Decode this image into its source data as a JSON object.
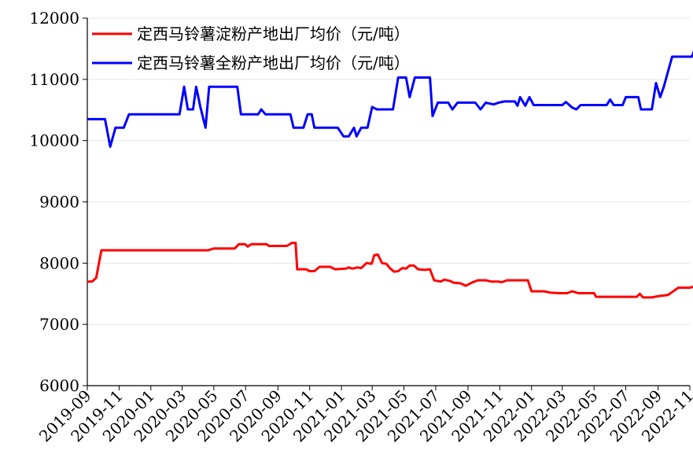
{
  "chart_data": {
    "type": "line",
    "title": "",
    "xlabel": "",
    "ylabel": "",
    "ylim": [
      6000,
      12000
    ],
    "yticks": [
      6000,
      7000,
      8000,
      9000,
      10000,
      11000,
      12000
    ],
    "xlim": [
      "2019-09",
      "2022-11"
    ],
    "xticks": [
      "2019-09",
      "2019-11",
      "2020-01",
      "2020-03",
      "2020-05",
      "2020-07",
      "2020-09",
      "2020-11",
      "2021-01",
      "2021-03",
      "2021-05",
      "2021-07",
      "2021-09",
      "2021-11",
      "2022-01",
      "2022-03",
      "2022-05",
      "2022-07",
      "2022-09",
      "2022-11"
    ],
    "grid": "horizontal",
    "legend": "top-left",
    "series": [
      {
        "name": "定西马铃薯淀粉产地出厂均价（元/吨）",
        "color": "#ff0000",
        "points": [
          [
            "2019-09-01",
            7700
          ],
          [
            "2019-09-10",
            7700
          ],
          [
            "2019-09-18",
            7760
          ],
          [
            "2019-09-28",
            8210
          ],
          [
            "2020-04-20",
            8210
          ],
          [
            "2020-05-01",
            8240
          ],
          [
            "2020-06-10",
            8240
          ],
          [
            "2020-06-18",
            8310
          ],
          [
            "2020-06-30",
            8310
          ],
          [
            "2020-07-05",
            8270
          ],
          [
            "2020-07-12",
            8310
          ],
          [
            "2020-08-10",
            8310
          ],
          [
            "2020-08-15",
            8280
          ],
          [
            "2020-09-18",
            8280
          ],
          [
            "2020-09-28",
            8330
          ],
          [
            "2020-10-05",
            8330
          ],
          [
            "2020-10-08",
            7900
          ],
          [
            "2020-10-25",
            7900
          ],
          [
            "2020-11-01",
            7870
          ],
          [
            "2020-11-10",
            7870
          ],
          [
            "2020-11-20",
            7940
          ],
          [
            "2020-12-10",
            7940
          ],
          [
            "2020-12-20",
            7900
          ],
          [
            "2021-01-10",
            7910
          ],
          [
            "2021-01-15",
            7930
          ],
          [
            "2021-01-22",
            7910
          ],
          [
            "2021-02-01",
            7930
          ],
          [
            "2021-02-08",
            7920
          ],
          [
            "2021-02-18",
            8000
          ],
          [
            "2021-02-28",
            7990
          ],
          [
            "2021-03-05",
            8130
          ],
          [
            "2021-03-12",
            8140
          ],
          [
            "2021-03-20",
            8000
          ],
          [
            "2021-03-28",
            7990
          ],
          [
            "2021-04-05",
            7910
          ],
          [
            "2021-04-12",
            7860
          ],
          [
            "2021-04-20",
            7870
          ],
          [
            "2021-04-28",
            7920
          ],
          [
            "2021-05-05",
            7910
          ],
          [
            "2021-05-12",
            7960
          ],
          [
            "2021-05-20",
            7960
          ],
          [
            "2021-05-28",
            7900
          ],
          [
            "2021-06-10",
            7890
          ],
          [
            "2021-06-20",
            7900
          ],
          [
            "2021-06-28",
            7720
          ],
          [
            "2021-07-10",
            7700
          ],
          [
            "2021-07-18",
            7730
          ],
          [
            "2021-07-28",
            7710
          ],
          [
            "2021-08-05",
            7680
          ],
          [
            "2021-08-18",
            7670
          ],
          [
            "2021-08-28",
            7630
          ],
          [
            "2021-09-08",
            7680
          ],
          [
            "2021-09-20",
            7720
          ],
          [
            "2021-10-05",
            7720
          ],
          [
            "2021-10-15",
            7700
          ],
          [
            "2021-10-28",
            7700
          ],
          [
            "2021-11-05",
            7690
          ],
          [
            "2021-11-15",
            7720
          ],
          [
            "2021-12-25",
            7720
          ],
          [
            "2022-01-01",
            7540
          ],
          [
            "2022-01-25",
            7540
          ],
          [
            "2022-02-05",
            7520
          ],
          [
            "2022-02-25",
            7510
          ],
          [
            "2022-03-10",
            7510
          ],
          [
            "2022-03-20",
            7540
          ],
          [
            "2022-04-01",
            7510
          ],
          [
            "2022-05-01",
            7510
          ],
          [
            "2022-05-05",
            7450
          ],
          [
            "2022-07-10",
            7450
          ],
          [
            "2022-07-22",
            7450
          ],
          [
            "2022-07-28",
            7500
          ],
          [
            "2022-08-03",
            7440
          ],
          [
            "2022-08-20",
            7440
          ],
          [
            "2022-09-01",
            7460
          ],
          [
            "2022-09-20",
            7480
          ],
          [
            "2022-10-10",
            7600
          ],
          [
            "2022-11-01",
            7600
          ],
          [
            "2022-11-10",
            7620
          ],
          [
            "2022-11-15",
            7620
          ]
        ]
      },
      {
        "name": "定西马铃薯全粉产地出厂均价（元/吨）",
        "color": "#0000ff",
        "points": [
          [
            "2019-09-01",
            10350
          ],
          [
            "2019-10-05",
            10350
          ],
          [
            "2019-10-15",
            9900
          ],
          [
            "2019-10-25",
            10210
          ],
          [
            "2019-11-10",
            10210
          ],
          [
            "2019-11-20",
            10430
          ],
          [
            "2020-02-25",
            10430
          ],
          [
            "2020-03-05",
            10880
          ],
          [
            "2020-03-12",
            10510
          ],
          [
            "2020-03-22",
            10510
          ],
          [
            "2020-03-28",
            10880
          ],
          [
            "2020-04-05",
            10550
          ],
          [
            "2020-04-15",
            10210
          ],
          [
            "2020-04-22",
            10880
          ],
          [
            "2020-06-15",
            10880
          ],
          [
            "2020-06-22",
            10430
          ],
          [
            "2020-07-25",
            10430
          ],
          [
            "2020-07-31",
            10510
          ],
          [
            "2020-08-08",
            10430
          ],
          [
            "2020-09-25",
            10430
          ],
          [
            "2020-10-01",
            10210
          ],
          [
            "2020-10-20",
            10210
          ],
          [
            "2020-10-28",
            10430
          ],
          [
            "2020-11-05",
            10430
          ],
          [
            "2020-11-10",
            10210
          ],
          [
            "2020-12-25",
            10210
          ],
          [
            "2021-01-05",
            10070
          ],
          [
            "2021-01-15",
            10070
          ],
          [
            "2021-01-25",
            10210
          ],
          [
            "2021-01-30",
            10070
          ],
          [
            "2021-02-08",
            10210
          ],
          [
            "2021-02-20",
            10210
          ],
          [
            "2021-03-01",
            10550
          ],
          [
            "2021-03-10",
            10510
          ],
          [
            "2021-04-10",
            10510
          ],
          [
            "2021-04-20",
            11030
          ],
          [
            "2021-05-05",
            11030
          ],
          [
            "2021-05-12",
            10710
          ],
          [
            "2021-05-22",
            11030
          ],
          [
            "2021-06-20",
            11030
          ],
          [
            "2021-06-25",
            10400
          ],
          [
            "2021-07-05",
            10620
          ],
          [
            "2021-07-25",
            10620
          ],
          [
            "2021-08-02",
            10510
          ],
          [
            "2021-08-12",
            10620
          ],
          [
            "2021-09-15",
            10620
          ],
          [
            "2021-09-25",
            10510
          ],
          [
            "2021-10-05",
            10620
          ],
          [
            "2021-10-20",
            10590
          ],
          [
            "2021-10-30",
            10620
          ],
          [
            "2021-11-10",
            10640
          ],
          [
            "2021-11-30",
            10640
          ],
          [
            "2021-12-05",
            10570
          ],
          [
            "2021-12-10",
            10710
          ],
          [
            "2021-12-20",
            10570
          ],
          [
            "2021-12-28",
            10710
          ],
          [
            "2022-01-05",
            10580
          ],
          [
            "2022-03-01",
            10580
          ],
          [
            "2022-03-08",
            10630
          ],
          [
            "2022-03-20",
            10540
          ],
          [
            "2022-03-28",
            10510
          ],
          [
            "2022-04-05",
            10580
          ],
          [
            "2022-05-25",
            10580
          ],
          [
            "2022-06-01",
            10670
          ],
          [
            "2022-06-08",
            10580
          ],
          [
            "2022-06-25",
            10580
          ],
          [
            "2022-07-01",
            10710
          ],
          [
            "2022-07-25",
            10710
          ],
          [
            "2022-07-30",
            10510
          ],
          [
            "2022-08-20",
            10510
          ],
          [
            "2022-08-28",
            10940
          ],
          [
            "2022-09-05",
            10710
          ],
          [
            "2022-09-12",
            10880
          ],
          [
            "2022-09-28",
            11370
          ],
          [
            "2022-10-25",
            11370
          ],
          [
            "2022-11-05",
            11370
          ],
          [
            "2022-11-15",
            11600
          ],
          [
            "2022-11-22",
            11370
          ],
          [
            "2022-11-28",
            11600
          ],
          [
            "2022-12-05",
            11600
          ]
        ]
      }
    ]
  }
}
